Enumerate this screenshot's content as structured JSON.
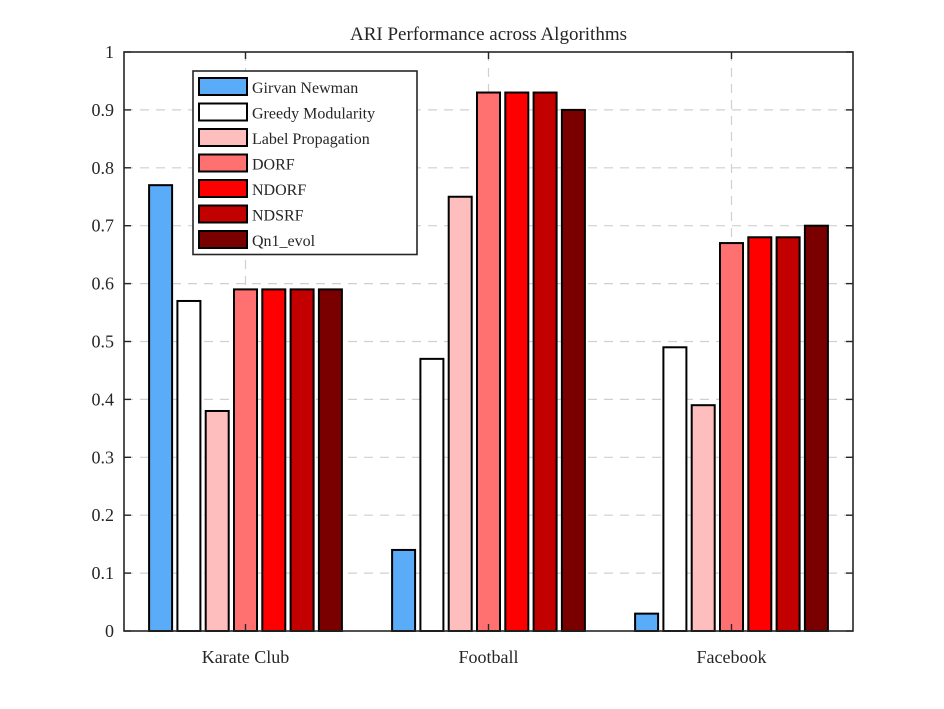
{
  "chart_data": {
    "type": "bar",
    "title": "ARI Performance across Algorithms",
    "xlabel": "",
    "ylabel": "",
    "ylim": [
      0,
      1
    ],
    "yticks": [
      "0",
      "0.1",
      "0.2",
      "0.3",
      "0.4",
      "0.5",
      "0.6",
      "0.7",
      "0.8",
      "0.9",
      "1"
    ],
    "ytick_values": [
      0,
      0.1,
      0.2,
      0.3,
      0.4,
      0.5,
      0.6,
      0.7,
      0.8,
      0.9,
      1
    ],
    "categories": [
      "Karate Club",
      "Football",
      "Facebook"
    ],
    "grid": true,
    "legend_position": "top-left",
    "series": [
      {
        "name": "Girvan Newman",
        "color": "#5aabf8",
        "values": [
          0.77,
          0.14,
          0.03
        ]
      },
      {
        "name": "Greedy Modularity",
        "color": "#ffffff",
        "values": [
          0.57,
          0.47,
          0.49
        ]
      },
      {
        "name": "Label Propagation",
        "color": "#ffbebe",
        "values": [
          0.38,
          0.75,
          0.39
        ]
      },
      {
        "name": "DORF",
        "color": "#ff7171",
        "values": [
          0.59,
          0.93,
          0.67
        ]
      },
      {
        "name": "NDORF",
        "color": "#ff0000",
        "values": [
          0.59,
          0.93,
          0.68
        ]
      },
      {
        "name": "NDSRF",
        "color": "#c30000",
        "values": [
          0.59,
          0.93,
          0.68
        ]
      },
      {
        "name": "Qn1_evol",
        "color": "#7a0000",
        "values": [
          0.59,
          0.9,
          0.7
        ]
      }
    ]
  }
}
